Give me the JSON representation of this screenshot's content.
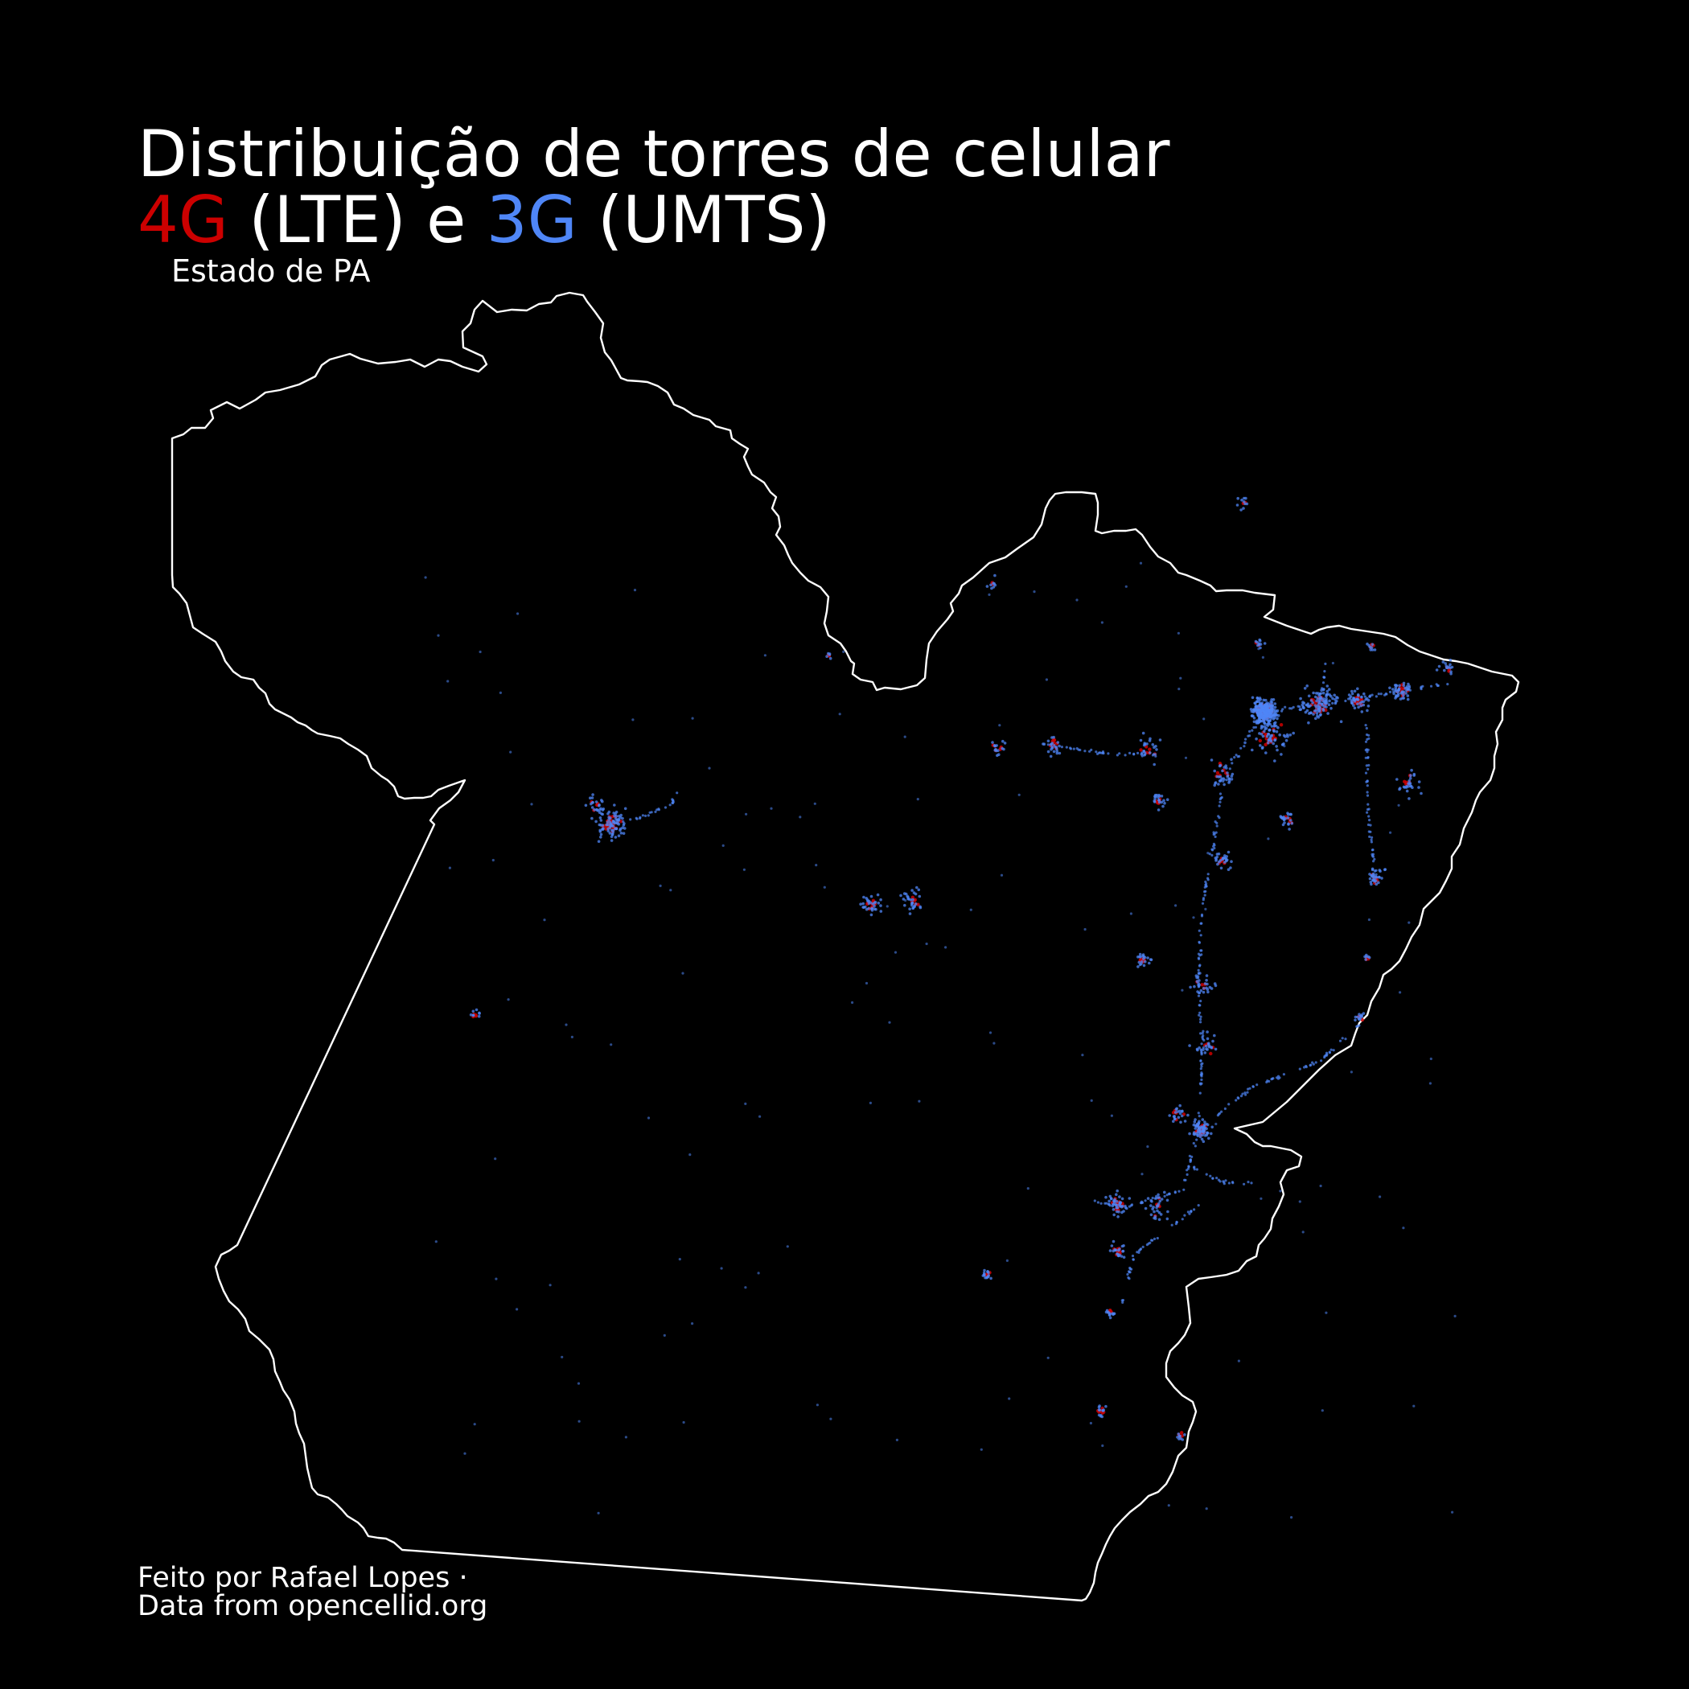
{
  "title": {
    "line1": "Distribuição de torres de celular",
    "lte_label": "4G",
    "lte_suffix": " (LTE) e ",
    "umts_label": "3G",
    "umts_suffix": " (UMTS)"
  },
  "subtitle": "Estado de PA",
  "credits": {
    "line1": "Feito por Rafael Lopes ·",
    "line2": "Data from opencellid.org"
  },
  "colors": {
    "background": "#000000",
    "border": "#ffffff",
    "lte": "#cc0000",
    "umts": "#4f86f7"
  },
  "legend": [
    {
      "technology": "LTE",
      "generation": "4G",
      "color": "#cc0000"
    },
    {
      "technology": "UMTS",
      "generation": "3G",
      "color": "#4f86f7"
    }
  ]
}
